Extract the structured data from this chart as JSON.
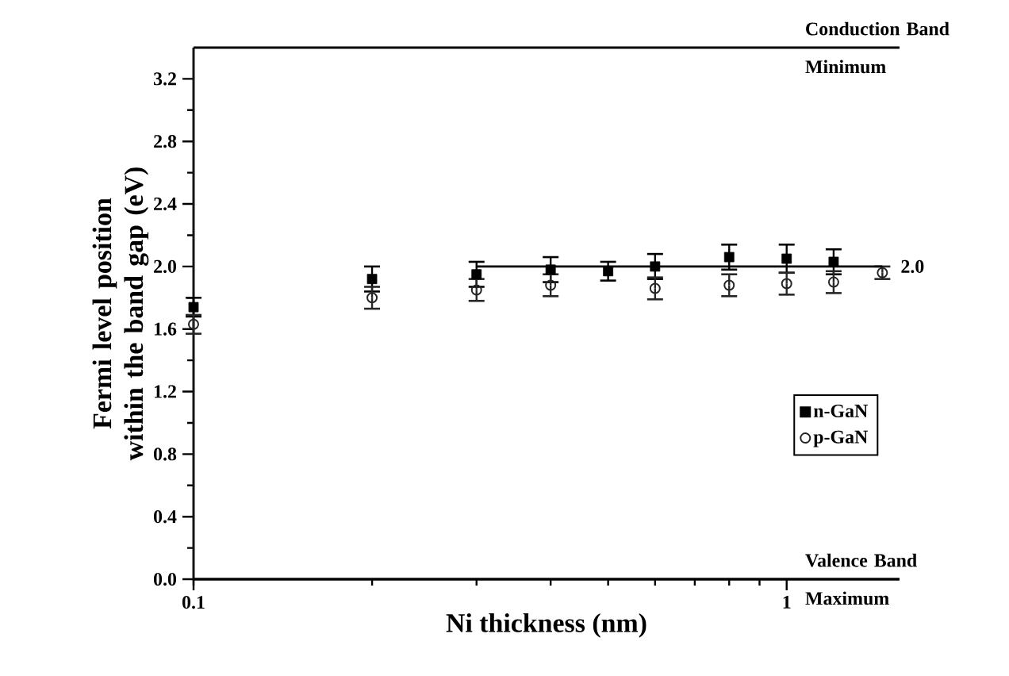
{
  "chart_data": {
    "type": "scatter",
    "xlabel": "Ni thickness (nm)",
    "ylabel": "Fermi level position within the band gap (eV)",
    "log": "x",
    "xlim": [
      0.1,
      1.55
    ],
    "xticks": [
      0.1,
      1
    ],
    "ylim": [
      0,
      3.4
    ],
    "yticks": [
      {
        "value": 0,
        "label": "0.0"
      },
      0.4,
      0.8,
      1.2,
      1.6,
      {
        "value": 2,
        "label": "2.0"
      },
      2.4,
      2.8,
      3.2
    ],
    "legend": "right",
    "grid": false,
    "series": [
      {
        "name": "n-GaN",
        "color": "#000000",
        "marker": "square",
        "x": [
          0.1,
          0.2,
          0.3,
          0.4,
          0.5,
          0.6,
          0.8,
          1.0,
          1.2
        ],
        "values": [
          1.74,
          1.92,
          1.95,
          1.98,
          1.97,
          2.0,
          2.06,
          2.05,
          2.03
        ],
        "errors": [
          0.06,
          0.08,
          0.08,
          0.08,
          0.06,
          0.08,
          0.08,
          0.09,
          0.08
        ]
      },
      {
        "name": "p-GaN",
        "color": "#262626",
        "marker": "circle",
        "x": [
          0.1,
          0.2,
          0.3,
          0.4,
          0.6,
          0.8,
          1.0,
          1.2,
          1.45
        ],
        "values": [
          1.63,
          1.8,
          1.85,
          1.88,
          1.86,
          1.88,
          1.89,
          1.9,
          1.96
        ],
        "errors": [
          0.06,
          0.07,
          0.07,
          0.07,
          0.07,
          0.07,
          0.07,
          0.07,
          0.04
        ]
      },
      {
        "type": "line",
        "color": "#000000",
        "marker": "none",
        "x": [
          0.3,
          1.45
        ],
        "values": [
          2.0,
          2.0
        ]
      }
    ],
    "ref_lines": [
      {
        "axis": "y",
        "value": 3.4,
        "label": "Conduction Band Minimum"
      },
      {
        "axis": "y",
        "value": 0,
        "label": "Valence Band Maximum"
      }
    ],
    "annotations": [
      {
        "text": "2.0",
        "x": 1.45,
        "y": 2.0
      }
    ]
  }
}
